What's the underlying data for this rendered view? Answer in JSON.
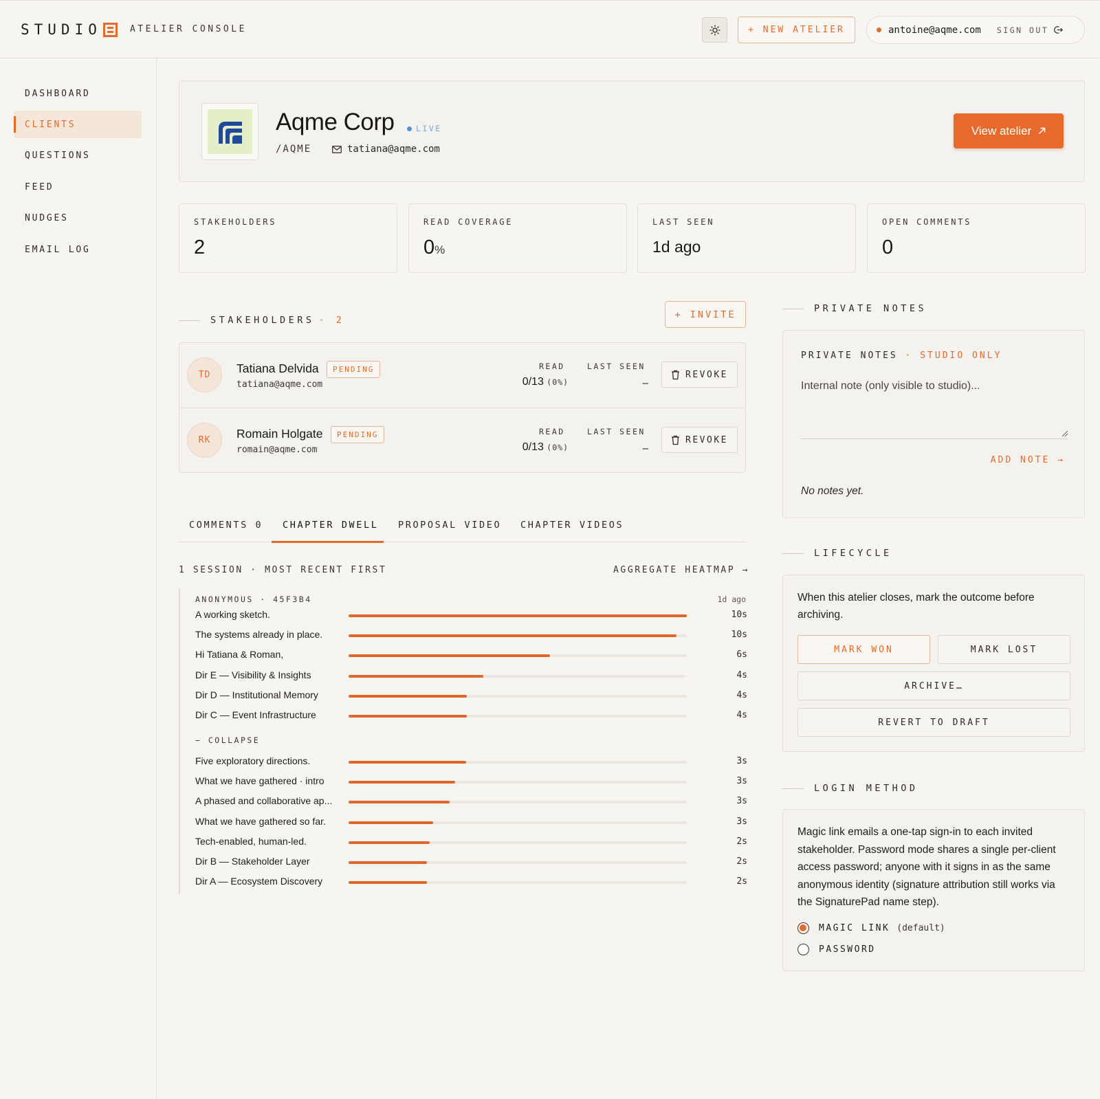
{
  "header": {
    "brand": "STUDIO",
    "console_label": "ATELIER CONSOLE",
    "new_atelier": "+ NEW ATELIER",
    "user_email": "antoine@aqme.com",
    "sign_out": "SIGN OUT"
  },
  "sidebar": {
    "items": [
      {
        "label": "DASHBOARD",
        "active": false
      },
      {
        "label": "CLIENTS",
        "active": true
      },
      {
        "label": "QUESTIONS",
        "active": false
      },
      {
        "label": "FEED",
        "active": false
      },
      {
        "label": "NUDGES",
        "active": false
      },
      {
        "label": "EMAIL LOG",
        "active": false
      }
    ]
  },
  "client": {
    "name": "Aqme Corp",
    "status": "LIVE",
    "slug": "/AQME",
    "email": "tatiana@aqme.com",
    "view_button": "View atelier"
  },
  "stats": [
    {
      "label": "STAKEHOLDERS",
      "value": "2",
      "unit": ""
    },
    {
      "label": "READ COVERAGE",
      "value": "0",
      "unit": "%"
    },
    {
      "label": "LAST SEEN",
      "value": "1d ago",
      "unit": ""
    },
    {
      "label": "OPEN COMMENTS",
      "value": "0",
      "unit": ""
    }
  ],
  "stakeholders": {
    "title": "STAKEHOLDERS",
    "count": "· 2",
    "invite": "+ INVITE",
    "read_label": "READ",
    "last_seen_label": "LAST SEEN",
    "revoke_label": "REVOKE",
    "rows": [
      {
        "initials": "TD",
        "name": "Tatiana Delvida",
        "status": "PENDING",
        "email": "tatiana@aqme.com",
        "read": "0/13",
        "read_pct": "(0%)",
        "last_seen": "–"
      },
      {
        "initials": "RK",
        "name": "Romain Holgate",
        "status": "PENDING",
        "email": "romain@aqme.com",
        "read": "0/13",
        "read_pct": "(0%)",
        "last_seen": "–"
      }
    ]
  },
  "tabs": [
    {
      "label": "COMMENTS 0",
      "active": false
    },
    {
      "label": "CHAPTER DWELL",
      "active": true
    },
    {
      "label": "PROPOSAL VIDEO",
      "active": false
    },
    {
      "label": "CHAPTER VIDEOS",
      "active": false
    }
  ],
  "dwell": {
    "session_label": "1 SESSION · MOST RECENT FIRST",
    "heatmap_link": "AGGREGATE HEATMAP →",
    "session_head": "ANONYMOUS · 45F3B4",
    "session_ago": "1d ago",
    "collapse": "− COLLAPSE",
    "rows_top": [
      {
        "label": "A working sketch.",
        "seconds": "10s",
        "fraction": 1.0
      },
      {
        "label": "The systems already in place.",
        "seconds": "10s",
        "fraction": 0.97
      },
      {
        "label": "Hi Tatiana & Roman,",
        "seconds": "6s",
        "fraction": 0.595
      },
      {
        "label": "Dir E — Visibility & Insights",
        "seconds": "4s",
        "fraction": 0.398
      },
      {
        "label": "Dir D — Institutional Memory",
        "seconds": "4s",
        "fraction": 0.35
      },
      {
        "label": "Dir C — Event Infrastructure",
        "seconds": "4s",
        "fraction": 0.35
      }
    ],
    "rows_bottom": [
      {
        "label": "Five exploratory directions.",
        "seconds": "3s",
        "fraction": 0.347
      },
      {
        "label": "What we have gathered · intro",
        "seconds": "3s",
        "fraction": 0.315
      },
      {
        "label": "A phased and collaborative ap...",
        "seconds": "3s",
        "fraction": 0.298
      },
      {
        "label": "What we have gathered so far.",
        "seconds": "3s",
        "fraction": 0.25
      },
      {
        "label": "Tech-enabled, human-led.",
        "seconds": "2s",
        "fraction": 0.24
      },
      {
        "label": "Dir B — Stakeholder Layer",
        "seconds": "2s",
        "fraction": 0.232
      },
      {
        "label": "Dir A — Ecosystem Discovery",
        "seconds": "2s",
        "fraction": 0.232
      }
    ]
  },
  "private_notes": {
    "section_title": "PRIVATE NOTES",
    "card_title": "PRIVATE NOTES",
    "studio_only": "· STUDIO ONLY",
    "placeholder": "Internal note (only visible to studio)...",
    "add_note": "ADD NOTE →",
    "empty": "No notes yet."
  },
  "lifecycle": {
    "section_title": "LIFECYCLE",
    "text": "When this atelier closes, mark the outcome before archiving.",
    "mark_won": "MARK WON",
    "mark_lost": "MARK LOST",
    "archive": "ARCHIVE…",
    "revert": "REVERT TO DRAFT"
  },
  "login": {
    "section_title": "LOGIN METHOD",
    "text": "Magic link emails a one-tap sign-in to each invited stakeholder. Password mode shares a single per-client access password; anyone with it signs in as the same anonymous identity (signature attribution still works via the SignaturePad name step).",
    "options": [
      {
        "label": "MAGIC LINK",
        "note": "(default)",
        "selected": true
      },
      {
        "label": "PASSWORD",
        "note": "",
        "selected": false
      }
    ]
  },
  "colors": {
    "accent": "#e56a2c",
    "background": "#f7f5f0",
    "live": "#5a8fdb"
  }
}
